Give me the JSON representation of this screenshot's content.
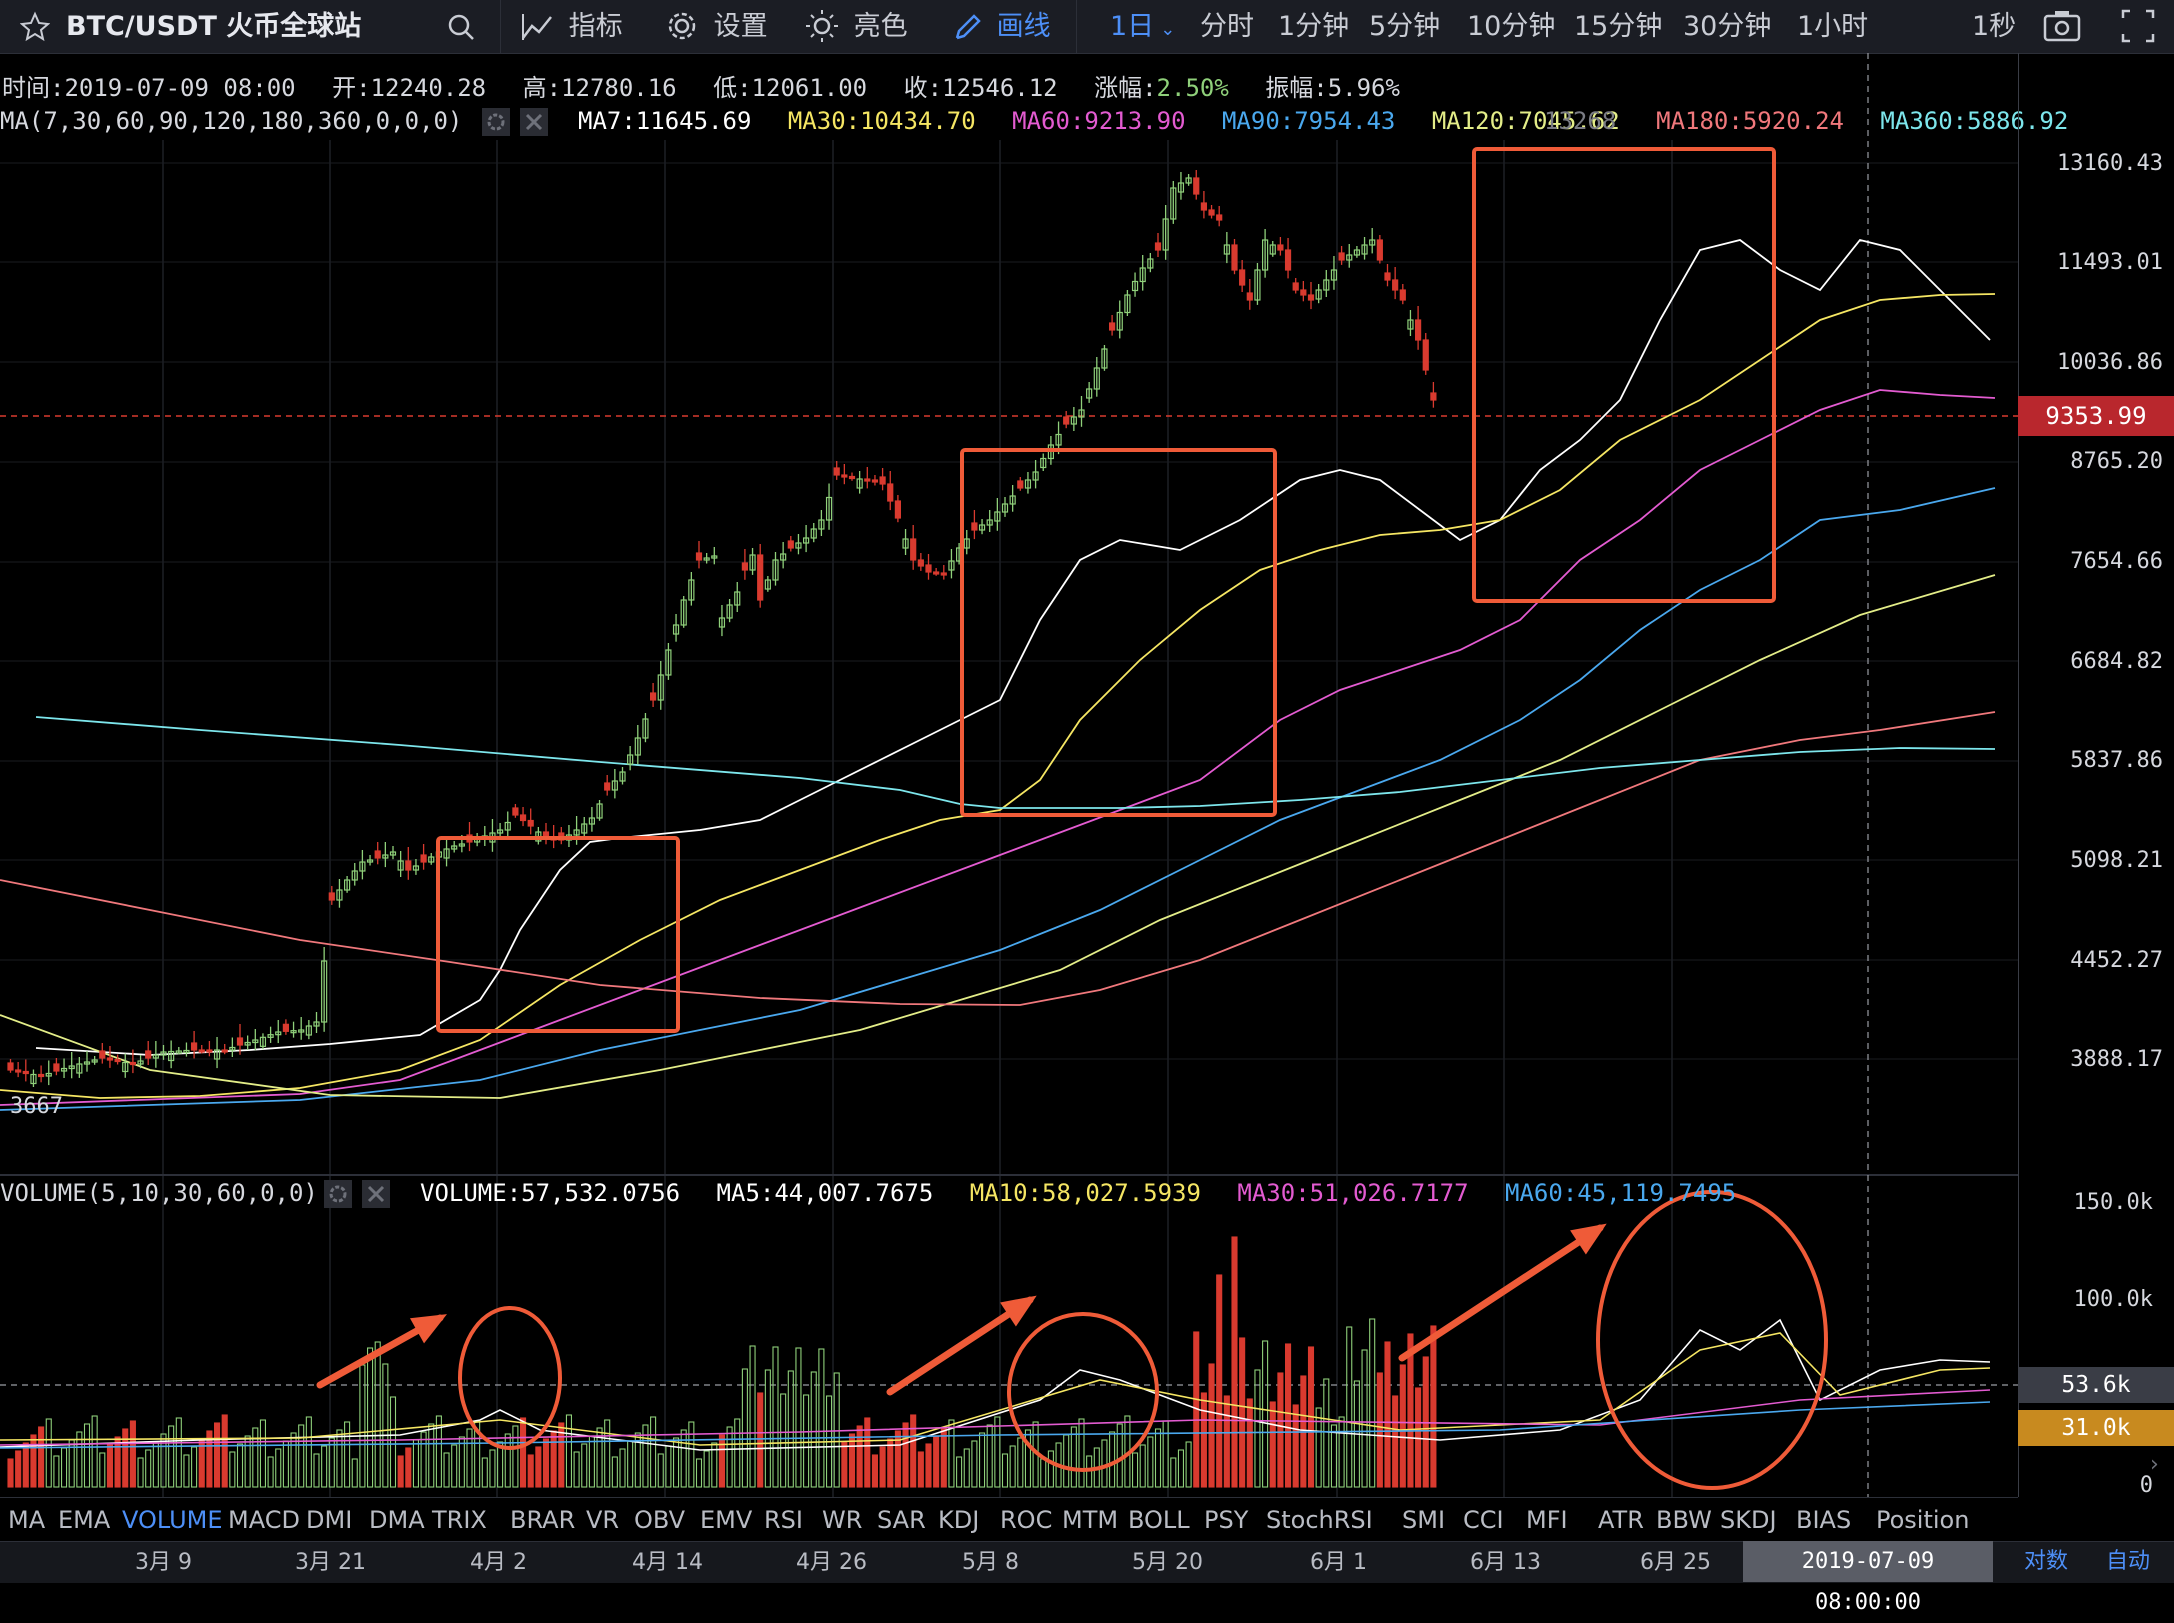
{
  "toolbar": {
    "symbol": "BTC/USDT 火币全球站",
    "indicators_label": "指标",
    "settings_label": "设置",
    "theme_label": "亮色",
    "draw_label": "画线",
    "periods": [
      "1日",
      "分时",
      "1分钟",
      "5分钟",
      "10分钟",
      "15分钟",
      "30分钟",
      "1小时"
    ],
    "refresh": "1秒",
    "icons": [
      "star-icon",
      "search-icon",
      "indicator-icon",
      "gear-icon",
      "sun-icon",
      "pencil-icon",
      "camera-icon",
      "fullscreen-icon"
    ]
  },
  "ohlc": {
    "time": "时间:2019-07-09 08:00",
    "open": "开:12240.28",
    "high": "高:12780.16",
    "low": "低:12061.00",
    "close_label": "收:12546.12",
    "change_label": "涨幅:",
    "change_value": "2.50%",
    "amplitude": "振幅:5.96%"
  },
  "ma": {
    "params": "MA(7,30,60,90,120,180,360,0,0,0)",
    "values": [
      {
        "label": "MA7:11645.69",
        "color": "#ffffff"
      },
      {
        "label": "MA30:10434.70",
        "color": "#f5e663"
      },
      {
        "label": "MA60:9213.90",
        "color": "#e35bd1"
      },
      {
        "label": "MA90:7954.43",
        "color": "#4aa8ee"
      },
      {
        "label": "MA120:7045.62",
        "color": "#e3ed88"
      },
      {
        "label": "MA180:5920.24",
        "color": "#f0787c"
      },
      {
        "label": "MA360:5886.92",
        "color": "#7de6ec"
      }
    ],
    "overlap_text": "13268"
  },
  "price_axis": {
    "labels": [
      "13160.43",
      "11493.01",
      "10036.86",
      "8765.20",
      "7654.66",
      "6684.82",
      "5837.86",
      "5098.21",
      "4452.27",
      "3888.17"
    ],
    "last_price": "9353.99",
    "low_marker": "3667"
  },
  "volume": {
    "params": "VOLUME(5,10,30,60,0,0)",
    "values": [
      {
        "label": "VOLUME:57,532.0756",
        "color": "#ffffff"
      },
      {
        "label": "MA5:44,007.7675",
        "color": "#ffffff"
      },
      {
        "label": "MA10:58,027.5939",
        "color": "#f5e663"
      },
      {
        "label": "MA30:51,026.7177",
        "color": "#e35bd1"
      },
      {
        "label": "MA60:45,119.7495",
        "color": "#4aa8ee"
      }
    ],
    "axis_labels": [
      "150.0k",
      "100.0k",
      "0"
    ],
    "marker_1": "53.6k",
    "marker_2": "31.0k"
  },
  "indicator_tabs": [
    "MA",
    "EMA",
    "VOLUME",
    "MACD",
    "DMI",
    "DMA",
    "TRIX",
    "BRAR",
    "VR",
    "OBV",
    "EMV",
    "RSI",
    "WR",
    "SAR",
    "KDJ",
    "ROC",
    "MTM",
    "BOLL",
    "PSY",
    "StochRSI",
    "SMI",
    "CCI",
    "MFI",
    "ATR",
    "BBW",
    "SKDJ",
    "BIAS",
    "Position"
  ],
  "active_indicator": "VOLUME",
  "dates": [
    "3月 9",
    "3月 21",
    "4月 2",
    "4月 14",
    "4月 26",
    "5月 8",
    "5月 20",
    "6月 1",
    "6月 13",
    "6月 25"
  ],
  "crosshair_date": "2019-07-09 08:00:00",
  "bottom_right": {
    "log": "对数",
    "auto": "自动"
  },
  "colors": {
    "up": "#8fd07a",
    "down": "#d93a2f",
    "highlight": "#ef5b38",
    "accent": "#4d8ff7"
  }
}
